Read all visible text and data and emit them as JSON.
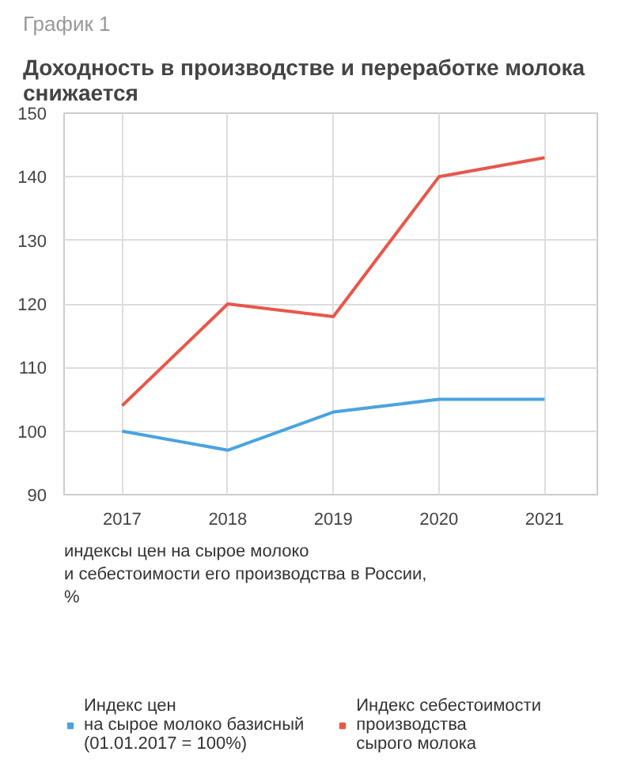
{
  "chart_data": {
    "type": "line",
    "subtitle": "График 1",
    "title": "Доходность в производстве и переработке молока снижается",
    "x": [
      2017,
      2018,
      2019,
      2020,
      2021
    ],
    "xlim": [
      2016.45,
      2021.5
    ],
    "xticks": [
      2017,
      2018,
      2019,
      2020,
      2021
    ],
    "ylim": [
      90,
      150
    ],
    "yticks": [
      90,
      100,
      110,
      120,
      130,
      140,
      150
    ],
    "grid": true,
    "legend": "bottom",
    "marker": "none",
    "line_style": "solid",
    "series": [
      {
        "name": "Индекс цен\nна сырое молоко базисный\n(01.01.2017 = 100%)",
        "color": "#4aa3df",
        "values": [
          100,
          97,
          103,
          105,
          105
        ]
      },
      {
        "name": "Индекс себестоимости\nпроизводства\nсырого молока",
        "color": "#e8574b",
        "values": [
          104,
          120,
          118,
          140,
          143
        ]
      }
    ],
    "annotations": [
      "индексы цен на сырое молоко\nи себестоимости его производства в России,\n%"
    ]
  }
}
